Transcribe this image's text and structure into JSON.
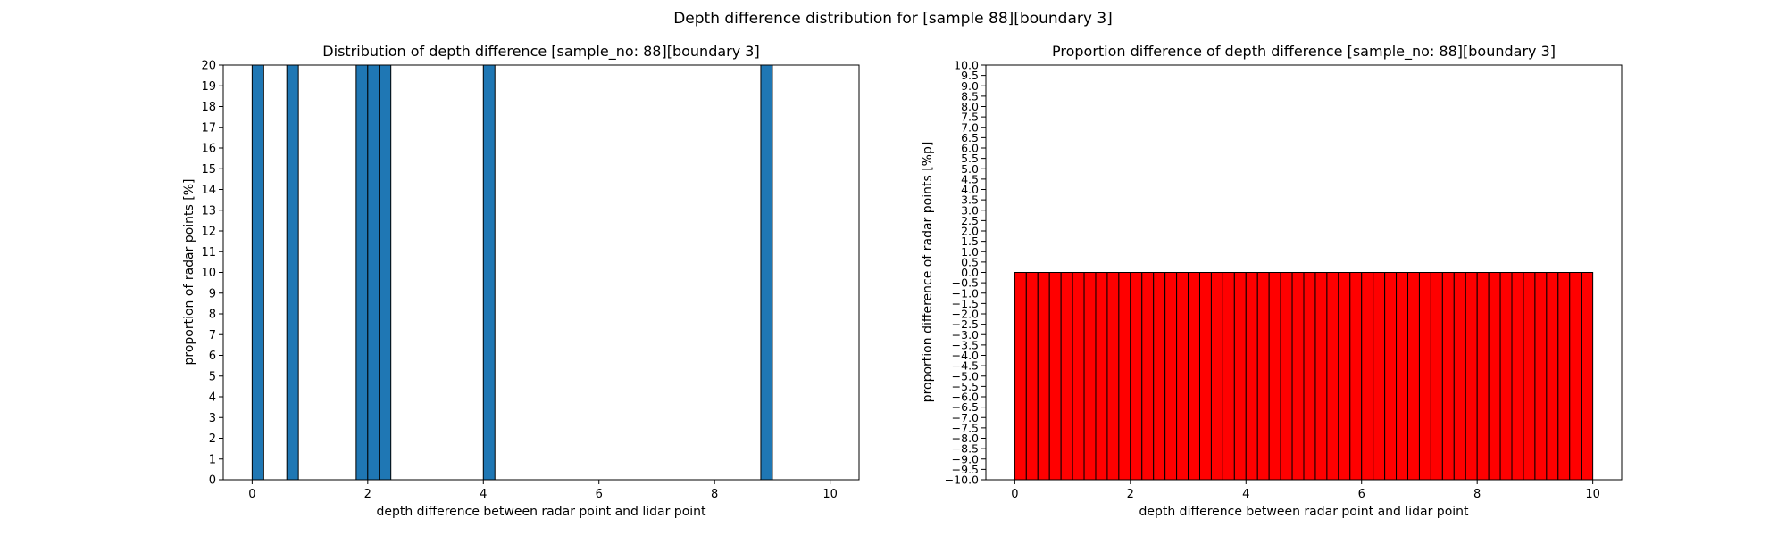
{
  "figure": {
    "suptitle": "Depth difference distribution for [sample 88][boundary 3]"
  },
  "chart_data": [
    {
      "type": "bar",
      "title": "Distribution of depth difference [sample_no: 88][boundary 3]",
      "xlabel": "depth difference between radar point and lidar point",
      "ylabel": "proportion of radar points [%]",
      "xlim": [
        -0.5,
        10.5
      ],
      "ylim": [
        0,
        20
      ],
      "xticks": [
        0,
        2,
        4,
        6,
        8,
        10
      ],
      "yticks": [
        0,
        1,
        2,
        3,
        4,
        5,
        6,
        7,
        8,
        9,
        10,
        11,
        12,
        13,
        14,
        15,
        16,
        17,
        18,
        19,
        20
      ],
      "bar_width": 0.2,
      "bar_color": "#1f77b4",
      "edge_color": "#000000",
      "bar_left_edges": [
        0.0,
        0.6,
        1.8,
        2.0,
        2.2,
        4.0,
        8.8
      ],
      "values": [
        20,
        20,
        20,
        20,
        20,
        20,
        20
      ],
      "clipped_at_ylim": true,
      "grid": false
    },
    {
      "type": "bar",
      "title": "Proportion difference of depth difference [sample_no: 88][boundary 3]",
      "xlabel": "depth difference between radar point and lidar point",
      "ylabel": "proportion difference of radar points [%p]",
      "xlim": [
        -0.5,
        10.5
      ],
      "ylim": [
        -10,
        10
      ],
      "xticks": [
        0,
        2,
        4,
        6,
        8,
        10
      ],
      "ytick_step": 0.5,
      "bar_width": 0.2,
      "bar_color": "#ff0000",
      "edge_color": "#000000",
      "bar_count": 50,
      "first_bar_left_edge": 0.0,
      "values": [
        -10,
        -10,
        -10,
        -10,
        -10,
        -10,
        -10,
        -10,
        -10,
        -10,
        -10,
        -10,
        -10,
        -10,
        -10,
        -10,
        -10,
        -10,
        -10,
        -10,
        -10,
        -10,
        -10,
        -10,
        -10,
        -10,
        -10,
        -10,
        -10,
        -10,
        -10,
        -10,
        -10,
        -10,
        -10,
        -10,
        -10,
        -10,
        -10,
        -10,
        -10,
        -10,
        -10,
        -10,
        -10,
        -10,
        -10,
        -10,
        -10,
        -10
      ],
      "grid": false
    }
  ]
}
